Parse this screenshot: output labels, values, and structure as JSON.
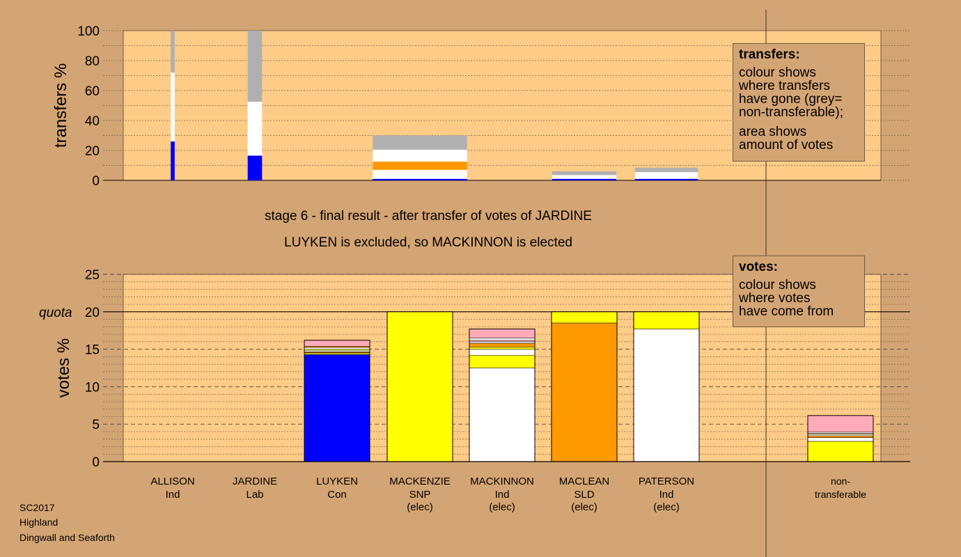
{
  "colors": {
    "background": "#d4a574",
    "plot_background": "#ffcc88",
    "Con": "#0000ff",
    "SNP": "#ffff00",
    "Ind": "#ffffff",
    "SLD": "#ff9900",
    "Lab": "#ffaabb",
    "non_transferable": "#b0b0b0",
    "dark_orange": "#cc6600",
    "line": "#000000"
  },
  "stage_line1": "stage 6 - final result - after transfer of votes of JARDINE",
  "stage_line2": "LUYKEN is excluded, so MACKINNON is elected",
  "legend_transfers": {
    "title": "transfers:",
    "lines": [
      "colour shows",
      "where transfers",
      "have gone (grey=",
      "non-transferable);"
    ],
    "lines2": [
      "area shows",
      "amount of votes"
    ]
  },
  "legend_votes": {
    "title": "votes:",
    "lines": [
      "colour shows",
      "where votes",
      "have come from"
    ]
  },
  "footer": [
    "SC2017",
    "Highland",
    "Dingwall and Seaforth"
  ],
  "chart_data": [
    {
      "type": "bar",
      "ylabel": "transfers %",
      "ylim": [
        0,
        100
      ],
      "yticks": [
        0,
        20,
        40,
        60,
        80,
        100
      ],
      "categories": [
        "ALLISON",
        "JARDINE",
        "LUYKEN",
        "MACKENZIE",
        "MACKINNON",
        "MACLEAN",
        "PATERSON",
        "non-transferable"
      ],
      "bars": [
        {
          "candidate": "ALLISON",
          "relative_width": 0.06,
          "segments": [
            {
              "party": "Con",
              "value": 26
            },
            {
              "party": "Ind",
              "value": 46
            },
            {
              "party": "non_transferable",
              "value": 28
            }
          ]
        },
        {
          "candidate": "JARDINE",
          "relative_width": 0.22,
          "segments": [
            {
              "party": "Con",
              "value": 16.5
            },
            {
              "party": "Ind",
              "value": 36
            },
            {
              "party": "non_transferable",
              "value": 47.5
            }
          ]
        },
        {
          "candidate": "MACKENZIE",
          "relative_width": 1.44,
          "segments": [
            {
              "party": "Con",
              "value": 1
            },
            {
              "party": "Ind",
              "value": 6
            },
            {
              "party": "SLD",
              "value": 5.5
            },
            {
              "party": "Ind",
              "value": 8
            },
            {
              "party": "non_transferable",
              "value": 9.5
            }
          ]
        },
        {
          "candidate": "MACLEAN",
          "relative_width": 0.98,
          "segments": [
            {
              "party": "Con",
              "value": 1
            },
            {
              "party": "Ind",
              "value": 2.5
            },
            {
              "party": "non_transferable",
              "value": 2.5
            }
          ]
        },
        {
          "candidate": "PATERSON",
          "relative_width": 0.96,
          "segments": [
            {
              "party": "Con",
              "value": 1
            },
            {
              "party": "Ind",
              "value": 4.5
            },
            {
              "party": "non_transferable",
              "value": 3
            }
          ]
        }
      ]
    },
    {
      "type": "bar",
      "ylabel": "votes %",
      "ylim": [
        0,
        25
      ],
      "yticks": [
        0,
        5,
        10,
        15,
        20,
        25
      ],
      "quota": 20,
      "quota_label": "quota",
      "categories": [
        {
          "name": "ALLISON",
          "party": "Ind",
          "status": ""
        },
        {
          "name": "JARDINE",
          "party": "Lab",
          "status": ""
        },
        {
          "name": "LUYKEN",
          "party": "Con",
          "status": ""
        },
        {
          "name": "MACKENZIE",
          "party": "SNP",
          "status": "(elec)"
        },
        {
          "name": "MACKINNON",
          "party": "Ind",
          "status": "(elec)"
        },
        {
          "name": "MACLEAN",
          "party": "SLD",
          "status": "(elec)"
        },
        {
          "name": "PATERSON",
          "party": "Ind",
          "status": "(elec)"
        },
        {
          "name": "non-",
          "party": "transferable",
          "status": ""
        }
      ],
      "stacks": [
        [],
        [],
        [
          {
            "party": "Con",
            "value": 14.3
          },
          {
            "party": "SNP",
            "value": 0.2
          },
          {
            "party": "dark_orange",
            "value": 0.15
          },
          {
            "party": "Ind",
            "value": 0.2
          },
          {
            "party": "SNP",
            "value": 0.15
          },
          {
            "party": "Ind",
            "value": 0.25
          },
          {
            "party": "SLD",
            "value": 0.15
          },
          {
            "party": "Lab",
            "value": 0.8
          }
        ],
        [
          {
            "party": "SNP",
            "value": 20
          }
        ],
        [
          {
            "party": "Ind",
            "value": 12.5
          },
          {
            "party": "SNP",
            "value": 1.7
          },
          {
            "party": "Ind",
            "value": 0.8
          },
          {
            "party": "SNP",
            "value": 0.3
          },
          {
            "party": "SLD",
            "value": 0.5
          },
          {
            "party": "Ind",
            "value": 0.2
          },
          {
            "party": "Lab",
            "value": 0.2
          },
          {
            "party": "Ind",
            "value": 0.3
          },
          {
            "party": "Lab",
            "value": 1.2
          }
        ],
        [
          {
            "party": "SLD",
            "value": 18.5
          },
          {
            "party": "SNP",
            "value": 1.5
          }
        ],
        [
          {
            "party": "Ind",
            "value": 17.7
          },
          {
            "party": "SNP",
            "value": 2.3
          }
        ],
        [
          {
            "party": "SNP",
            "value": 2.7
          },
          {
            "party": "Ind",
            "value": 0.5
          },
          {
            "party": "SLD",
            "value": 0.25
          },
          {
            "party": "Ind",
            "value": 0.2
          },
          {
            "party": "SLD",
            "value": 0.1
          },
          {
            "party": "Ind",
            "value": 0.2
          },
          {
            "party": "Lab",
            "value": 2.2
          }
        ]
      ]
    }
  ]
}
